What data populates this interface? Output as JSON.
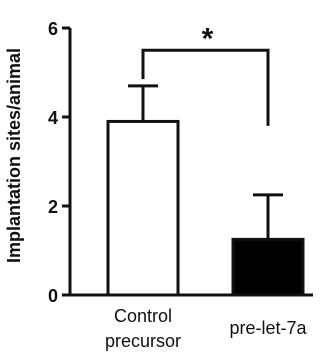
{
  "chart_data": {
    "type": "bar",
    "title": "",
    "xlabel": "",
    "ylabel": "Implantation sites/animal",
    "ylim": [
      0,
      6
    ],
    "yticks": [
      0,
      2,
      4,
      6
    ],
    "categories": [
      {
        "lines": [
          "Control",
          "precursor"
        ]
      },
      {
        "lines": [
          "pre-let-7a"
        ]
      }
    ],
    "values": [
      3.9,
      1.25
    ],
    "errors": [
      0.8,
      1.0
    ],
    "bar_fills": [
      "#ffffff",
      "#000000"
    ],
    "significance": {
      "label": "*",
      "between": [
        0,
        1
      ]
    },
    "grid": false
  }
}
